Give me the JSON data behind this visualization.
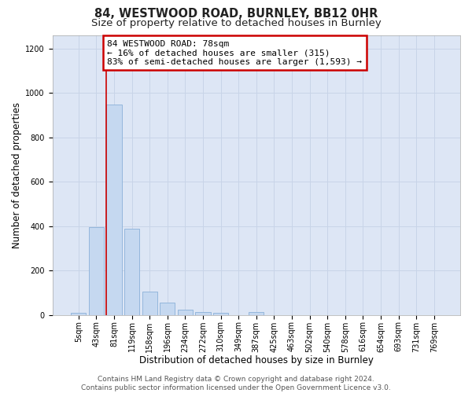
{
  "title": "84, WESTWOOD ROAD, BURNLEY, BB12 0HR",
  "subtitle": "Size of property relative to detached houses in Burnley",
  "xlabel": "Distribution of detached houses by size in Burnley",
  "ylabel": "Number of detached properties",
  "categories": [
    "5sqm",
    "43sqm",
    "81sqm",
    "119sqm",
    "158sqm",
    "196sqm",
    "234sqm",
    "272sqm",
    "310sqm",
    "349sqm",
    "387sqm",
    "425sqm",
    "463sqm",
    "502sqm",
    "540sqm",
    "578sqm",
    "616sqm",
    "654sqm",
    "693sqm",
    "731sqm",
    "769sqm"
  ],
  "values": [
    10,
    395,
    950,
    390,
    105,
    55,
    25,
    12,
    8,
    0,
    12,
    0,
    0,
    0,
    0,
    0,
    0,
    0,
    0,
    0,
    0
  ],
  "bar_color": "#c5d8f0",
  "bar_edge_color": "#8ab0d8",
  "vline_x_index": 2,
  "vline_color": "#cc0000",
  "annotation_text": "84 WESTWOOD ROAD: 78sqm\n← 16% of detached houses are smaller (315)\n83% of semi-detached houses are larger (1,593) →",
  "annotation_box_color": "#cc0000",
  "annotation_box_fill": "#ffffff",
  "ylim": [
    0,
    1260
  ],
  "yticks": [
    0,
    200,
    400,
    600,
    800,
    1000,
    1200
  ],
  "grid_color": "#c8d4e8",
  "background_color": "#dde6f5",
  "footer_text": "Contains HM Land Registry data © Crown copyright and database right 2024.\nContains public sector information licensed under the Open Government Licence v3.0.",
  "title_fontsize": 10.5,
  "subtitle_fontsize": 9.5,
  "xlabel_fontsize": 8.5,
  "ylabel_fontsize": 8.5,
  "tick_fontsize": 7,
  "annotation_fontsize": 8,
  "footer_fontsize": 6.5
}
